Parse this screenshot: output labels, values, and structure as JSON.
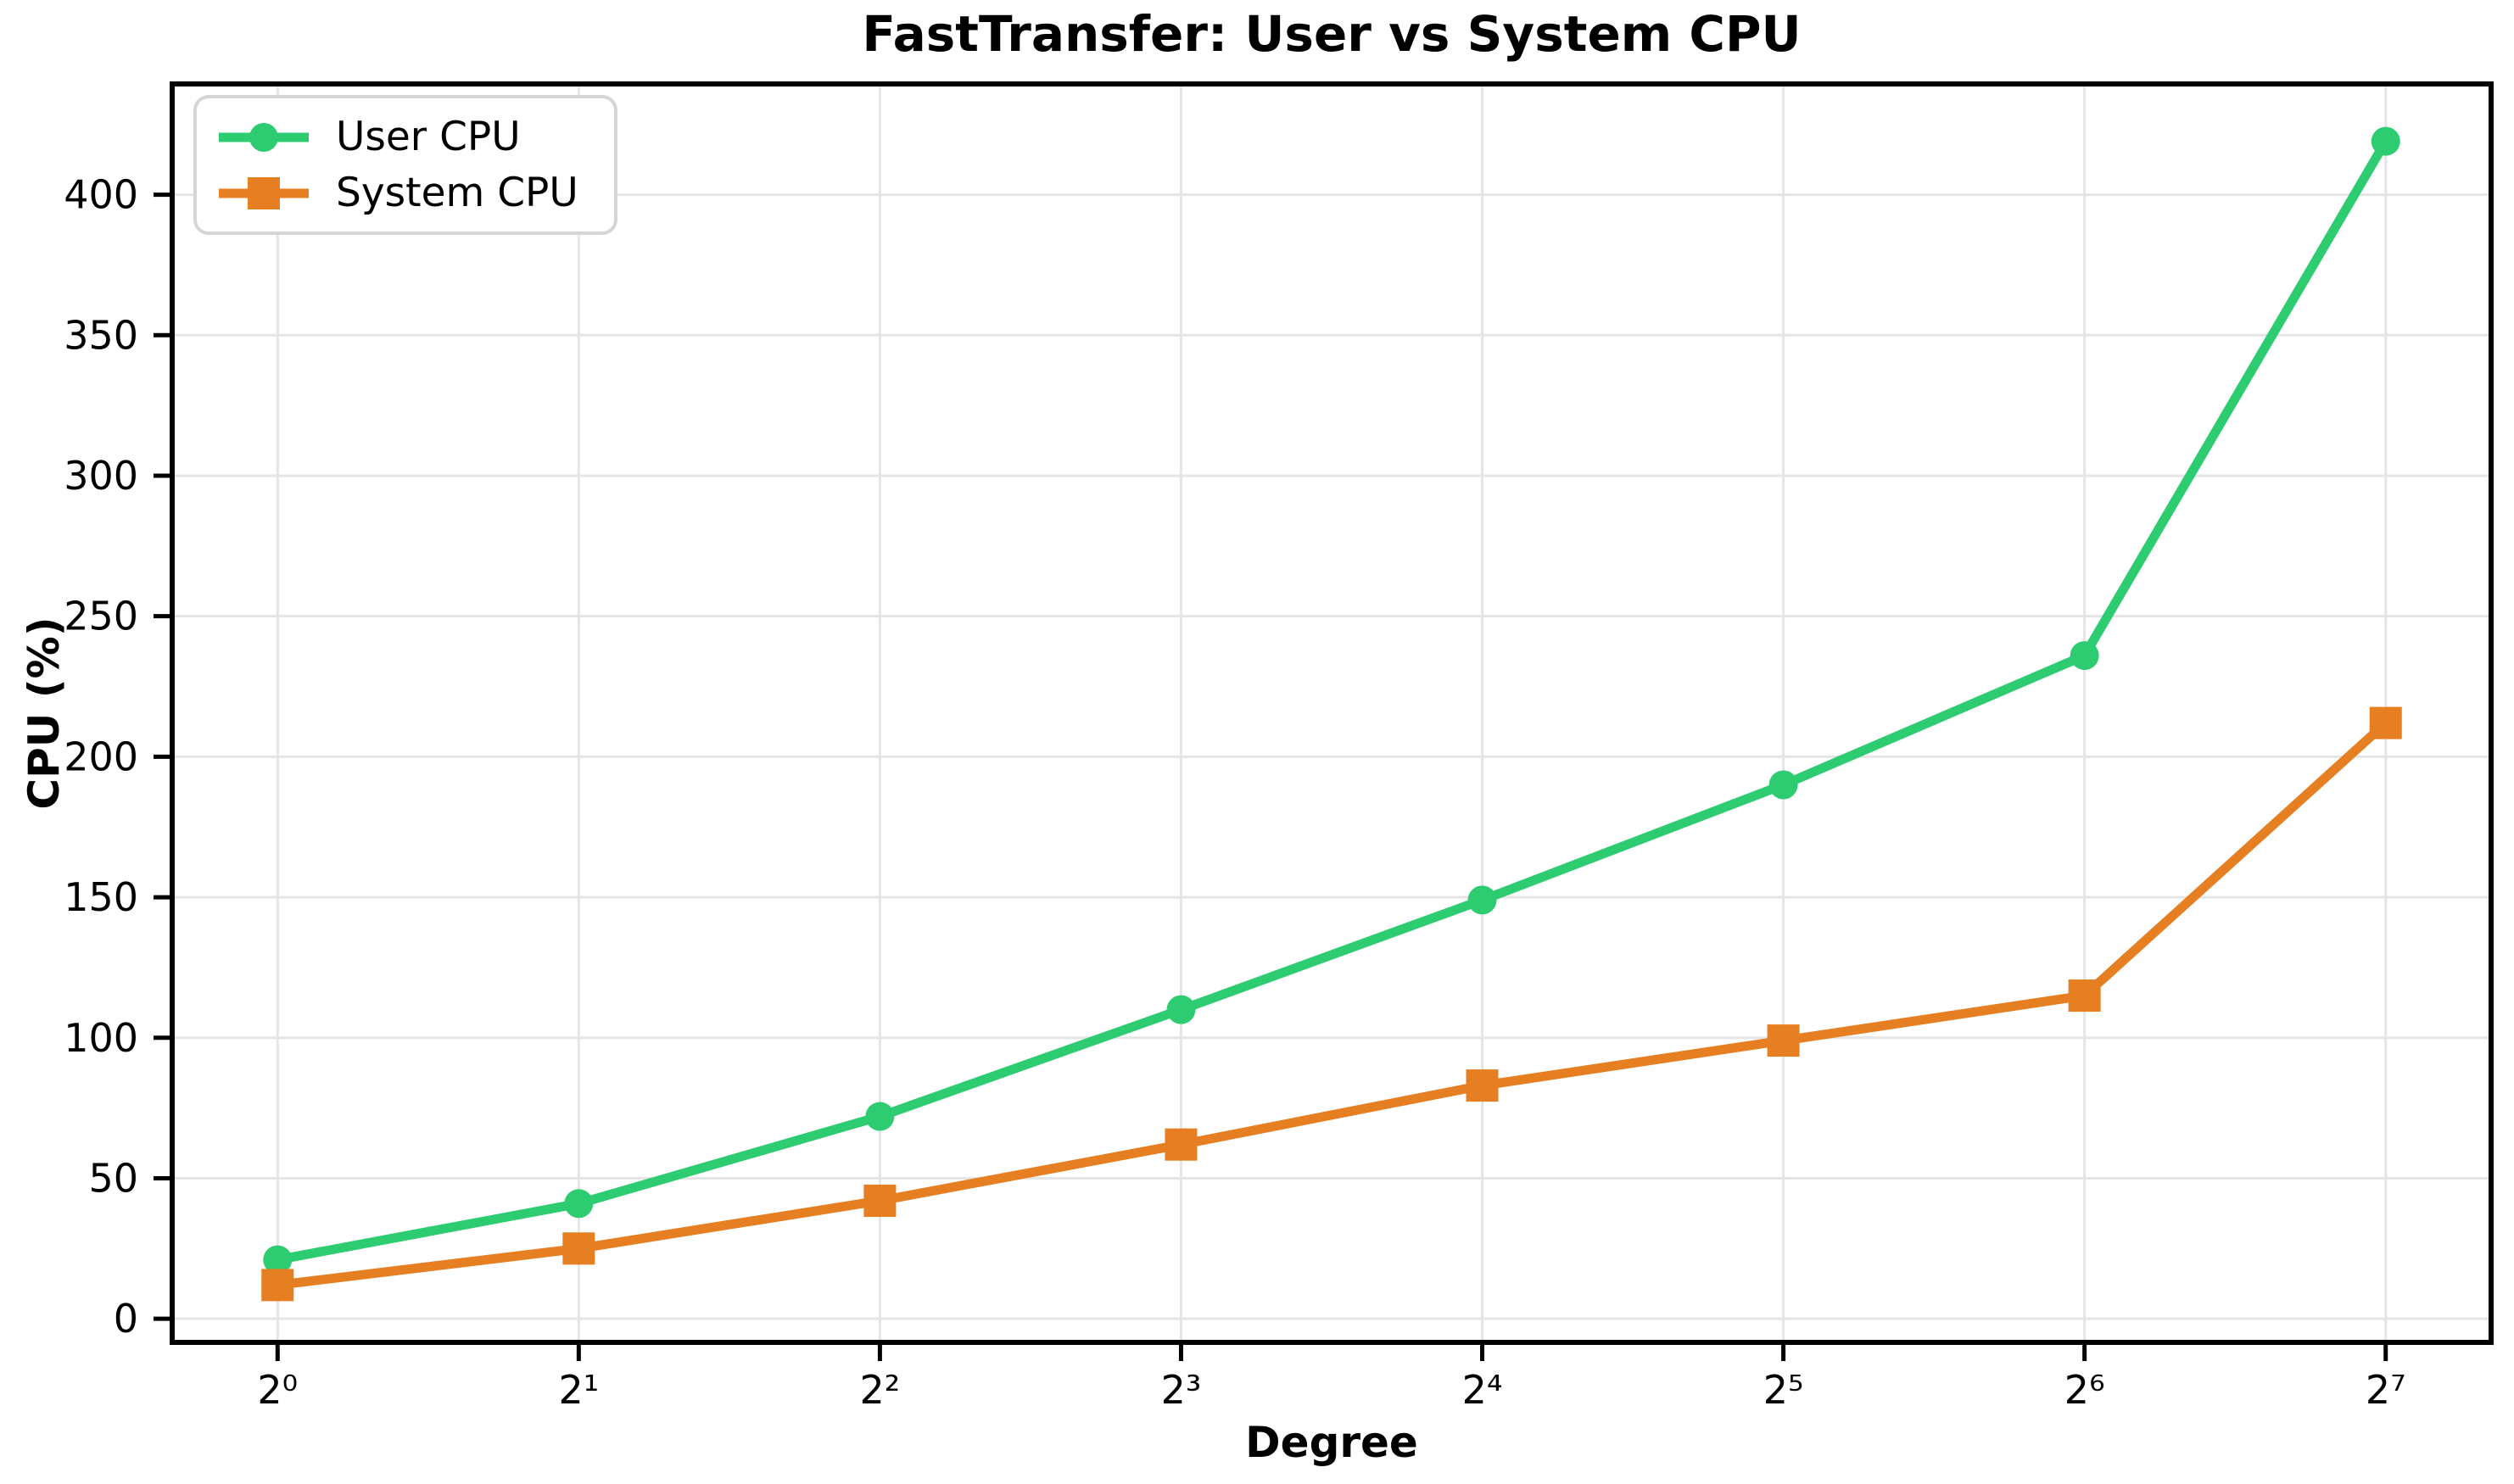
{
  "chart_data": {
    "type": "line",
    "title": "FastTransfer: User vs System CPU",
    "xlabel": "Degree",
    "ylabel": "CPU (%)",
    "categories": [
      "2⁰",
      "2¹",
      "2²",
      "2³",
      "2⁴",
      "2⁵",
      "2⁶",
      "2⁷"
    ],
    "x_tick_labels": [
      "2⁰",
      "2¹",
      "2²",
      "2³",
      "2⁴",
      "2⁵",
      "2⁶",
      "2⁷"
    ],
    "y_ticks": [
      0,
      50,
      100,
      150,
      200,
      250,
      300,
      350,
      400
    ],
    "xlim": [
      -0.35,
      7.35
    ],
    "ylim": [
      -8.4,
      439.4
    ],
    "grid": true,
    "legend_position": "upper left",
    "series": [
      {
        "name": "User CPU",
        "color": "#2ecc71",
        "marker": "circle",
        "values": [
          21,
          41,
          72,
          110,
          149,
          190,
          236,
          419
        ]
      },
      {
        "name": "System CPU",
        "color": "#e67e22",
        "marker": "square",
        "values": [
          12,
          25,
          42,
          62,
          83,
          99,
          115,
          212
        ]
      }
    ]
  }
}
